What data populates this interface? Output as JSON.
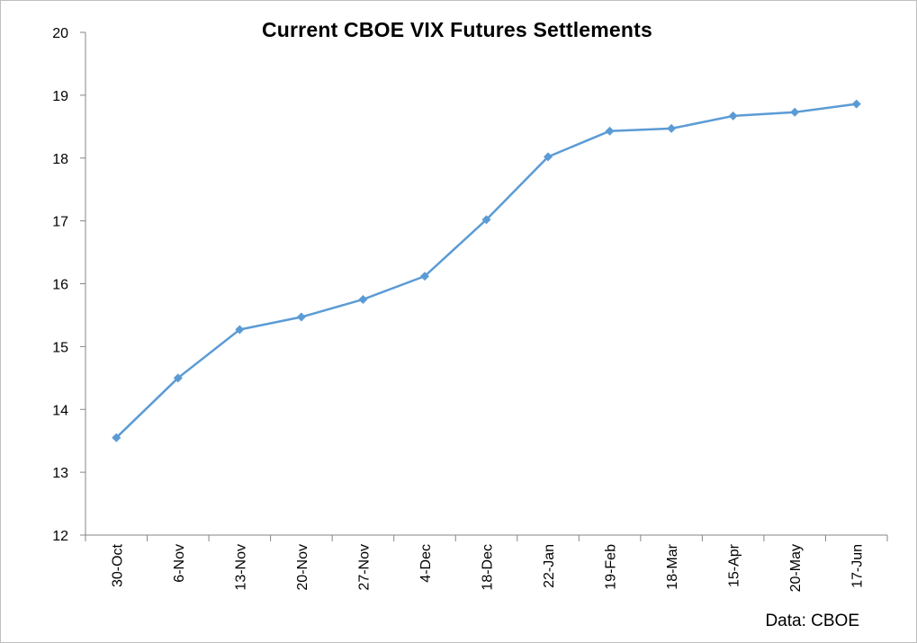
{
  "chart_data": {
    "type": "line",
    "title": "Current CBOE VIX Futures Settlements",
    "xlabel": "",
    "ylabel": "",
    "source_note": "Data: CBOE",
    "categories": [
      "30-Oct",
      "6-Nov",
      "13-Nov",
      "20-Nov",
      "27-Nov",
      "4-Dec",
      "18-Dec",
      "22-Jan",
      "19-Feb",
      "18-Mar",
      "15-Apr",
      "20-May",
      "17-Jun"
    ],
    "series": [
      {
        "values": [
          13.55,
          14.5,
          15.27,
          15.47,
          15.75,
          16.12,
          17.02,
          18.02,
          18.43,
          18.47,
          18.67,
          18.73,
          18.86
        ]
      }
    ],
    "ylim": [
      12,
      20
    ],
    "yticks": [
      12,
      13,
      14,
      15,
      16,
      17,
      18,
      19,
      20
    ],
    "grid": false,
    "legend": "none",
    "colors": {
      "line": "#5b9bd5",
      "axis": "#868686"
    }
  }
}
